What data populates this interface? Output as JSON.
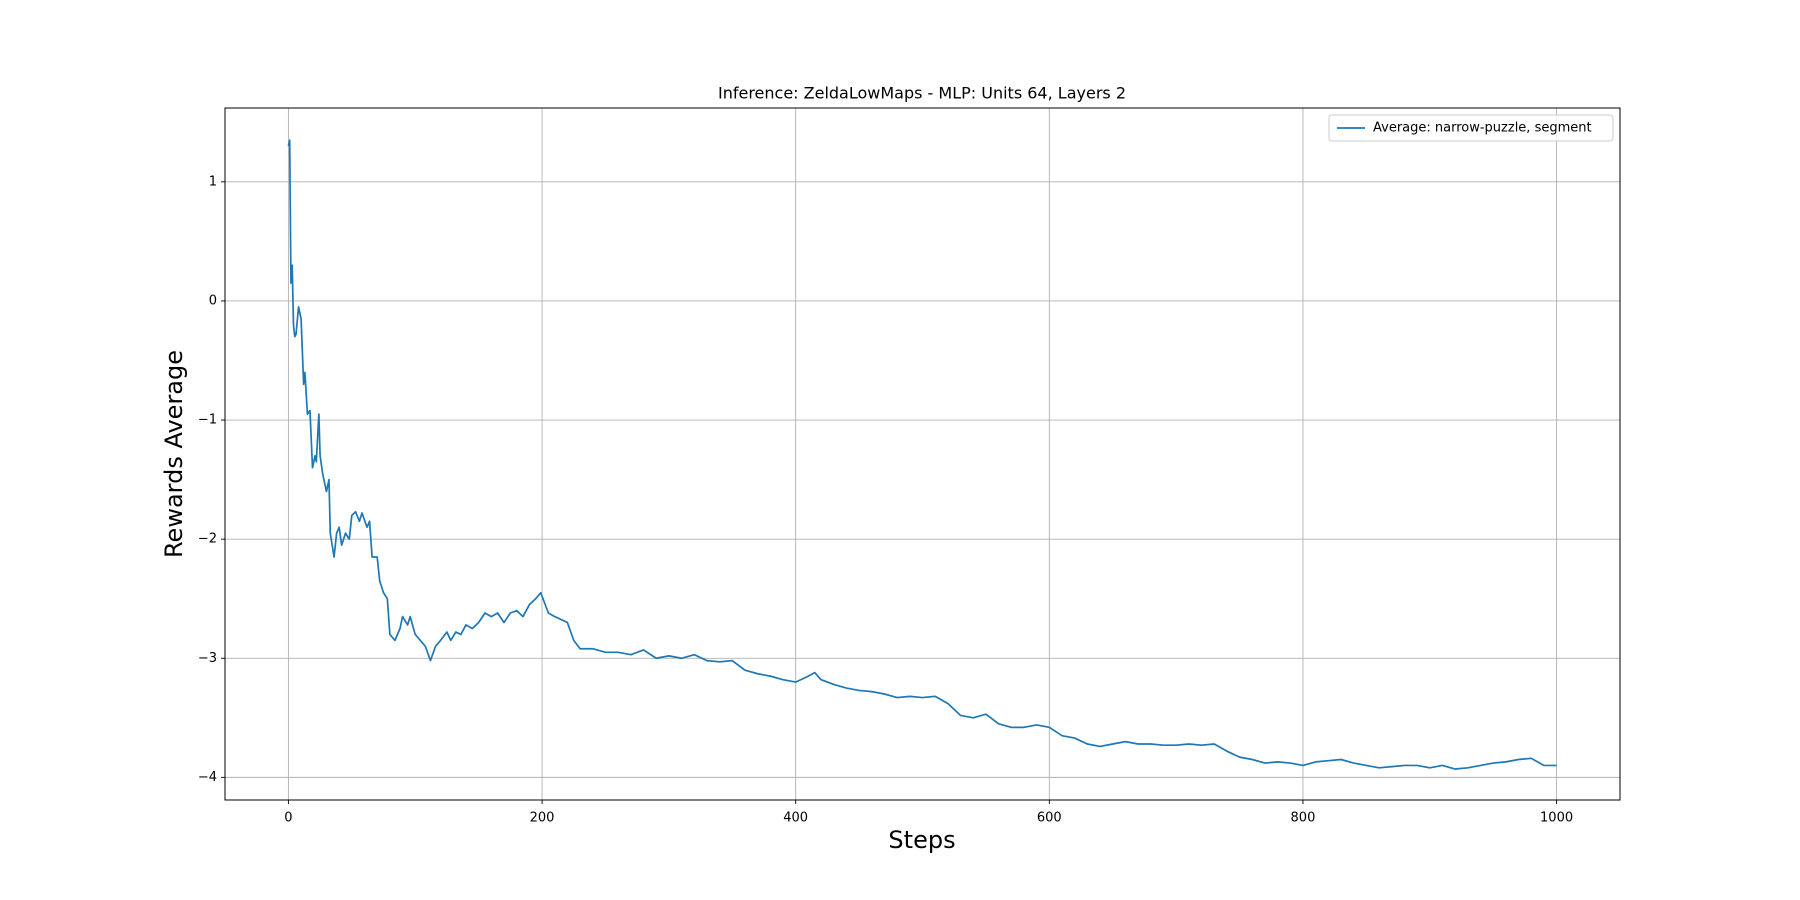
{
  "chart_data": {
    "type": "line",
    "title": "Inference: ZeldaLowMaps - MLP: Units 64, Layers 2",
    "xlabel": "Steps",
    "ylabel": "Rewards Average",
    "x": [
      0,
      1,
      2,
      3,
      4,
      5,
      6,
      8,
      10,
      12,
      13,
      15,
      17,
      19,
      21,
      22,
      24,
      25,
      27,
      30,
      32,
      33,
      36,
      38,
      40,
      42,
      45,
      48,
      50,
      53,
      56,
      58,
      62,
      64,
      66,
      70,
      72,
      75,
      78,
      80,
      84,
      88,
      90,
      94,
      96,
      100,
      104,
      108,
      112,
      116,
      120,
      125,
      128,
      132,
      136,
      140,
      145,
      150,
      155,
      160,
      165,
      170,
      175,
      180,
      185,
      190,
      195,
      199,
      205,
      210,
      220,
      225,
      230,
      240,
      250,
      260,
      270,
      280,
      290,
      300,
      310,
      320,
      330,
      340,
      350,
      360,
      370,
      380,
      390,
      400,
      410,
      415,
      420,
      430,
      440,
      450,
      460,
      470,
      480,
      490,
      500,
      510,
      520,
      530,
      540,
      550,
      560,
      570,
      580,
      590,
      600,
      610,
      620,
      630,
      640,
      650,
      660,
      670,
      680,
      690,
      700,
      710,
      720,
      730,
      740,
      750,
      760,
      770,
      780,
      790,
      800,
      810,
      820,
      830,
      840,
      850,
      860,
      870,
      880,
      890,
      900,
      910,
      920,
      930,
      940,
      950,
      960,
      970,
      980,
      990,
      1000
    ],
    "series": [
      {
        "name": "Average: narrow-puzzle, segment",
        "color": "#1f77b4",
        "values": [
          1.3,
          1.35,
          0.15,
          0.3,
          -0.2,
          -0.3,
          -0.28,
          -0.05,
          -0.15,
          -0.7,
          -0.6,
          -0.95,
          -0.92,
          -1.4,
          -1.3,
          -1.35,
          -0.95,
          -1.3,
          -1.45,
          -1.6,
          -1.5,
          -1.95,
          -2.15,
          -1.95,
          -1.9,
          -2.05,
          -1.95,
          -2.0,
          -1.8,
          -1.77,
          -1.85,
          -1.78,
          -1.9,
          -1.85,
          -2.15,
          -2.15,
          -2.35,
          -2.45,
          -2.5,
          -2.8,
          -2.85,
          -2.75,
          -2.65,
          -2.72,
          -2.65,
          -2.8,
          -2.85,
          -2.9,
          -3.02,
          -2.9,
          -2.85,
          -2.78,
          -2.85,
          -2.78,
          -2.8,
          -2.72,
          -2.75,
          -2.7,
          -2.62,
          -2.65,
          -2.62,
          -2.7,
          -2.62,
          -2.6,
          -2.65,
          -2.55,
          -2.5,
          -2.45,
          -2.62,
          -2.65,
          -2.7,
          -2.85,
          -2.92,
          -2.92,
          -2.95,
          -2.95,
          -2.97,
          -2.93,
          -3.0,
          -2.98,
          -3.0,
          -2.97,
          -3.02,
          -3.03,
          -3.02,
          -3.1,
          -3.13,
          -3.15,
          -3.18,
          -3.2,
          -3.15,
          -3.12,
          -3.18,
          -3.22,
          -3.25,
          -3.27,
          -3.28,
          -3.3,
          -3.33,
          -3.32,
          -3.33,
          -3.32,
          -3.38,
          -3.48,
          -3.5,
          -3.47,
          -3.55,
          -3.58,
          -3.58,
          -3.56,
          -3.58,
          -3.65,
          -3.67,
          -3.72,
          -3.74,
          -3.72,
          -3.7,
          -3.72,
          -3.72,
          -3.73,
          -3.73,
          -3.72,
          -3.73,
          -3.72,
          -3.78,
          -3.83,
          -3.85,
          -3.88,
          -3.87,
          -3.88,
          -3.9,
          -3.87,
          -3.86,
          -3.85,
          -3.88,
          -3.9,
          -3.92,
          -3.91,
          -3.9,
          -3.9,
          -3.92,
          -3.9,
          -3.93,
          -3.92,
          -3.9,
          -3.88,
          -3.87,
          -3.85,
          -3.84,
          -3.9,
          -3.9
        ]
      }
    ],
    "xlim": [
      -50,
      1050
    ],
    "ylim": [
      -4.19,
      1.62
    ],
    "xticks": [
      0,
      200,
      400,
      600,
      800,
      1000
    ],
    "yticks": [
      {
        "value": -4,
        "label": "−4"
      },
      {
        "value": -3,
        "label": "−3"
      },
      {
        "value": -2,
        "label": "−2"
      },
      {
        "value": -1,
        "label": "−1"
      },
      0,
      1
    ],
    "grid": true,
    "legend": "upper right"
  }
}
